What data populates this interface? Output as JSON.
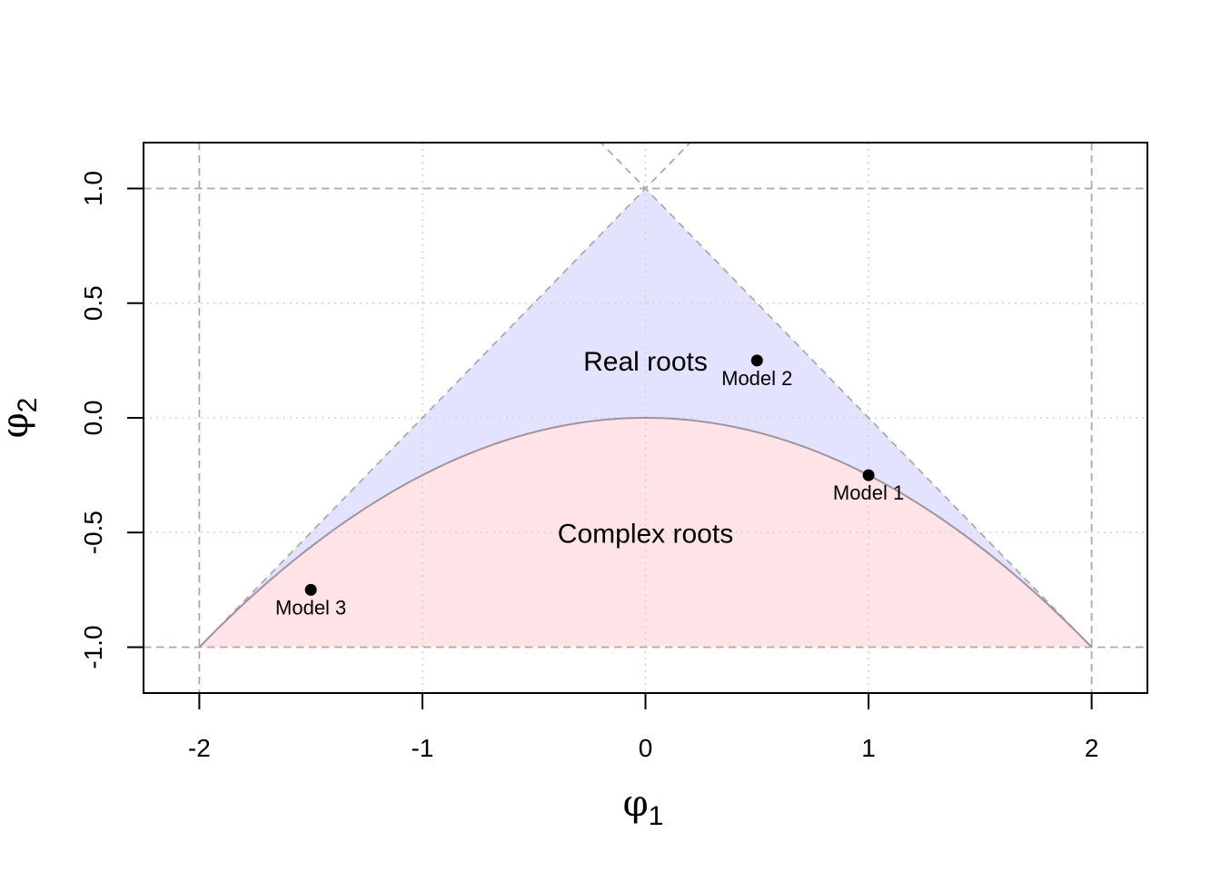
{
  "chart_data": {
    "type": "scatter",
    "xlabel": "φ1",
    "ylabel": "φ2",
    "xlim": [
      -2.25,
      2.25
    ],
    "ylim": [
      -1.2,
      1.2
    ],
    "xticks": [
      -2,
      -1,
      0,
      1,
      2
    ],
    "xtick_labels": [
      "-2",
      "-1",
      "0",
      "1",
      "2"
    ],
    "yticks": [
      -1.0,
      -0.5,
      0.0,
      0.5,
      1.0
    ],
    "ytick_labels": [
      "-1.0",
      "-0.5",
      "0.0",
      "0.5",
      "1.0"
    ],
    "grid": true,
    "regions": [
      {
        "name": "Real roots",
        "label_at": [
          0,
          0.25
        ],
        "color": "#e3e3ff",
        "boundary": "triangle (-2,-1),(0,1),(2,-1) above phi2 = -phi1^2/4"
      },
      {
        "name": "Complex roots",
        "label_at": [
          0,
          -0.5
        ],
        "color": "#ffe3e6",
        "boundary": "phi2 < -phi1^2/4, phi2 > -1"
      }
    ],
    "points": [
      {
        "label": "Model 1",
        "x": 1.0,
        "y": -0.25
      },
      {
        "label": "Model 2",
        "x": 0.5,
        "y": 0.25
      },
      {
        "label": "Model 3",
        "x": -1.5,
        "y": -0.75
      }
    ],
    "colors": {
      "real_region": "#e3e3ff",
      "complex_region": "#ffe3e6",
      "parabola": "#a0939f",
      "dashed_lines": "#aaaaaa",
      "grid": "#d3d3d3",
      "points": "#000000"
    }
  }
}
